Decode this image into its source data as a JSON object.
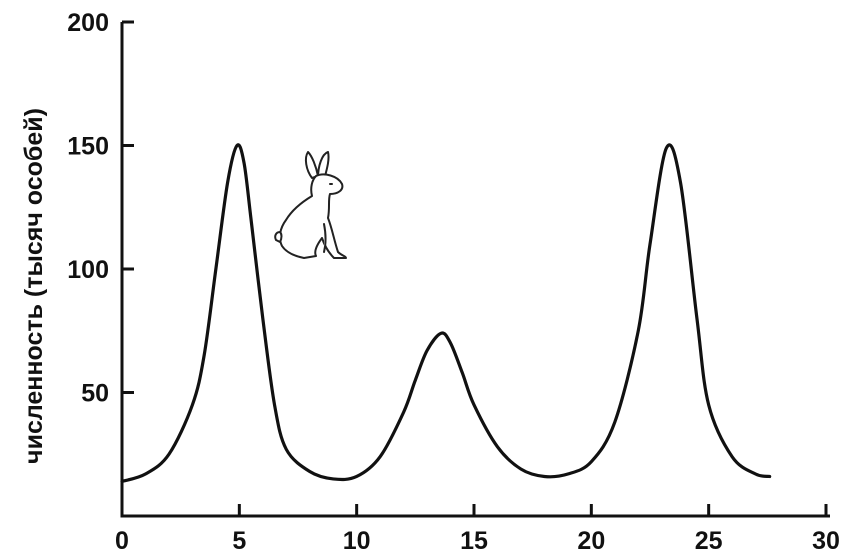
{
  "chart_data": {
    "type": "line",
    "title": "",
    "xlabel": "",
    "ylabel": "численность (тысяч особей)",
    "xlim": [
      0,
      30
    ],
    "ylim": [
      0,
      200
    ],
    "x_ticks": [
      0,
      5,
      10,
      15,
      20,
      25,
      30
    ],
    "y_ticks": [
      50,
      100,
      150,
      200
    ],
    "x_tick_labels": [
      "0",
      "5",
      "10",
      "15",
      "20",
      "25",
      "30"
    ],
    "y_tick_labels": [
      "50",
      "100",
      "150",
      "200"
    ],
    "grid": false,
    "series": [
      {
        "color": "#111111",
        "x": [
          0,
          1,
          2,
          3,
          3.5,
          4,
          4.5,
          4.9,
          5.2,
          5.5,
          6,
          6.5,
          7,
          8,
          9,
          10,
          11,
          12,
          12.5,
          13,
          13.6,
          14,
          14.5,
          15,
          16,
          17,
          18,
          19,
          20,
          21,
          22,
          22.5,
          23.2,
          23.8,
          24.5,
          25,
          26,
          27,
          27.6
        ],
        "y": [
          14,
          17,
          25,
          45,
          65,
          100,
          135,
          150,
          143,
          120,
          80,
          45,
          27,
          18,
          15,
          16,
          24,
          42,
          55,
          67,
          74,
          70,
          58,
          45,
          28,
          19,
          16,
          17,
          22,
          38,
          75,
          110,
          149,
          135,
          80,
          45,
          24,
          17,
          16
        ]
      }
    ],
    "annotation_icon": "hare-icon"
  }
}
